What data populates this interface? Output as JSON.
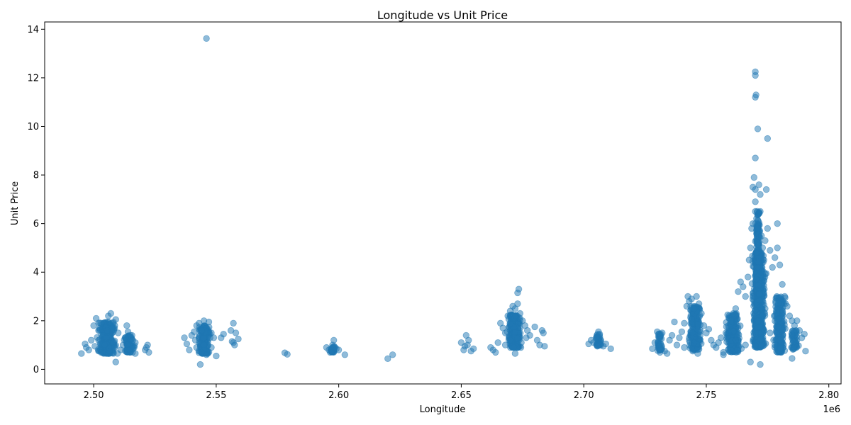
{
  "colors": {
    "marker": "#1f77b4",
    "axes": "#000000",
    "background": "#ffffff"
  },
  "chart_data": {
    "type": "scatter",
    "title": "Longitude vs Unit Price",
    "xlabel": "Longitude",
    "ylabel": "Unit Price",
    "x_offset_label": "1e6",
    "xlim": [
      2480000,
      2805000
    ],
    "ylim": [
      -0.6,
      14.3
    ],
    "xticks": [
      2500000,
      2550000,
      2600000,
      2650000,
      2700000,
      2750000,
      2800000
    ],
    "xtick_labels": [
      "2.50",
      "2.55",
      "2.60",
      "2.65",
      "2.70",
      "2.75",
      "2.80"
    ],
    "yticks": [
      0,
      2,
      4,
      6,
      8,
      10,
      12,
      14
    ],
    "ytick_labels": [
      "0",
      "2",
      "4",
      "6",
      "8",
      "10",
      "12",
      "14"
    ],
    "grid": false,
    "marker_alpha": 0.5,
    "points": [
      [
        2495000,
        0.65
      ],
      [
        2496500,
        1.05
      ],
      [
        2497000,
        0.9
      ],
      [
        2498000,
        0.8
      ],
      [
        2499000,
        1.2
      ],
      [
        2500000,
        1.8
      ],
      [
        2501000,
        2.1
      ],
      [
        2502000,
        1.6
      ],
      [
        2503000,
        1.9
      ],
      [
        2504000,
        1.4
      ],
      [
        2505000,
        1.3
      ],
      [
        2506000,
        2.2
      ],
      [
        2507000,
        2.3
      ],
      [
        2507500,
        1.7
      ],
      [
        2508000,
        1.1
      ],
      [
        2509000,
        2.05
      ],
      [
        2510000,
        1.5
      ],
      [
        2509000,
        0.3
      ],
      [
        2511000,
        0.8
      ],
      [
        2503000,
        0.7
      ],
      [
        2500500,
        0.95
      ],
      [
        2504500,
        1.0
      ],
      [
        2506500,
        0.75
      ],
      [
        2508500,
        0.9
      ],
      [
        2502000,
        1.2
      ],
      [
        2505500,
        1.6
      ],
      [
        2512000,
        1.0
      ],
      [
        2513000,
        1.3
      ],
      [
        2514000,
        1.55
      ],
      [
        2515000,
        1.4
      ],
      [
        2516000,
        1.2
      ],
      [
        2517000,
        1.1
      ],
      [
        2513500,
        1.8
      ],
      [
        2514500,
        0.8
      ],
      [
        2516500,
        0.9
      ],
      [
        2521000,
        0.8
      ],
      [
        2522000,
        1.0
      ],
      [
        2521500,
        0.9
      ],
      [
        2522500,
        0.7
      ],
      [
        2517000,
        0.65
      ],
      [
        2537000,
        1.3
      ],
      [
        2538000,
        1.05
      ],
      [
        2540000,
        1.4
      ],
      [
        2541000,
        1.55
      ],
      [
        2542000,
        1.8
      ],
      [
        2543000,
        1.9
      ],
      [
        2544000,
        1.6
      ],
      [
        2545000,
        2.0
      ],
      [
        2546000,
        1.7
      ],
      [
        2547000,
        1.95
      ],
      [
        2548000,
        1.5
      ],
      [
        2549000,
        1.3
      ],
      [
        2543500,
        0.2
      ],
      [
        2542000,
        0.9
      ],
      [
        2544000,
        0.7
      ],
      [
        2546000,
        0.6
      ],
      [
        2548000,
        0.9
      ],
      [
        2550000,
        0.55
      ],
      [
        2546000,
        13.62
      ],
      [
        2541500,
        1.2
      ],
      [
        2543000,
        1.1
      ],
      [
        2545000,
        1.0
      ],
      [
        2547500,
        1.3
      ],
      [
        2539000,
        0.8
      ],
      [
        2552000,
        1.3
      ],
      [
        2553000,
        1.45
      ],
      [
        2556000,
        1.6
      ],
      [
        2557000,
        1.9
      ],
      [
        2558000,
        1.5
      ],
      [
        2556500,
        1.15
      ],
      [
        2557500,
        1.0
      ],
      [
        2559000,
        1.25
      ],
      [
        2557000,
        1.1
      ],
      [
        2578000,
        0.68
      ],
      [
        2579000,
        0.62
      ],
      [
        2595000,
        0.9
      ],
      [
        2596000,
        0.8
      ],
      [
        2597000,
        0.75
      ],
      [
        2598000,
        1.2
      ],
      [
        2599000,
        0.85
      ],
      [
        2596500,
        0.7
      ],
      [
        2600000,
        0.8
      ],
      [
        2602500,
        0.6
      ],
      [
        2598500,
        0.9
      ],
      [
        2597500,
        1.0
      ],
      [
        2620000,
        0.44
      ],
      [
        2622000,
        0.6
      ],
      [
        2650000,
        1.1
      ],
      [
        2651000,
        0.8
      ],
      [
        2652000,
        1.4
      ],
      [
        2653000,
        1.2
      ],
      [
        2654000,
        0.75
      ],
      [
        2655000,
        0.85
      ],
      [
        2652500,
        1.0
      ],
      [
        2651500,
        0.95
      ],
      [
        2662000,
        0.9
      ],
      [
        2663000,
        0.8
      ],
      [
        2664000,
        0.7
      ],
      [
        2665000,
        1.1
      ],
      [
        2666000,
        1.9
      ],
      [
        2667000,
        1.7
      ],
      [
        2668000,
        1.5
      ],
      [
        2669000,
        2.2
      ],
      [
        2670000,
        2.4
      ],
      [
        2671000,
        2.6
      ],
      [
        2672000,
        2.5
      ],
      [
        2673000,
        2.7
      ],
      [
        2673500,
        3.3
      ],
      [
        2673000,
        3.15
      ],
      [
        2674000,
        2.3
      ],
      [
        2675000,
        2.0
      ],
      [
        2676000,
        1.8
      ],
      [
        2677000,
        1.6
      ],
      [
        2678000,
        1.4
      ],
      [
        2680000,
        1.75
      ],
      [
        2681000,
        1.2
      ],
      [
        2682000,
        1.0
      ],
      [
        2683000,
        1.6
      ],
      [
        2684000,
        0.95
      ],
      [
        2683500,
        1.5
      ],
      [
        2672000,
        0.65
      ],
      [
        2668000,
        1.0
      ],
      [
        2670000,
        1.2
      ],
      [
        2674500,
        1.1
      ],
      [
        2676500,
        1.3
      ],
      [
        2671500,
        0.9
      ],
      [
        2702000,
        1.05
      ],
      [
        2703000,
        1.2
      ],
      [
        2704000,
        1.1
      ],
      [
        2705000,
        1.3
      ],
      [
        2706000,
        1.55
      ],
      [
        2706500,
        1.45
      ],
      [
        2707000,
        1.0
      ],
      [
        2708000,
        0.95
      ],
      [
        2709000,
        1.05
      ],
      [
        2711000,
        0.85
      ],
      [
        2705500,
        0.95
      ],
      [
        2728000,
        0.85
      ],
      [
        2729000,
        1.1
      ],
      [
        2730000,
        1.55
      ],
      [
        2731000,
        1.4
      ],
      [
        2732000,
        1.5
      ],
      [
        2733000,
        0.75
      ],
      [
        2734000,
        0.65
      ],
      [
        2735000,
        1.2
      ],
      [
        2736000,
        1.4
      ],
      [
        2737000,
        1.95
      ],
      [
        2738000,
        1.0
      ],
      [
        2739000,
        1.3
      ],
      [
        2740000,
        1.55
      ],
      [
        2741000,
        1.9
      ],
      [
        2742000,
        2.6
      ],
      [
        2742500,
        3.0
      ],
      [
        2743000,
        2.8
      ],
      [
        2744000,
        2.9
      ],
      [
        2745000,
        2.5
      ],
      [
        2746000,
        3.0
      ],
      [
        2747000,
        2.7
      ],
      [
        2748000,
        2.3
      ],
      [
        2749000,
        1.8
      ],
      [
        2750000,
        1.5
      ],
      [
        2751000,
        1.65
      ],
      [
        2752000,
        1.2
      ],
      [
        2753000,
        1.0
      ],
      [
        2754000,
        0.9
      ],
      [
        2745000,
        1.1
      ],
      [
        2743000,
        1.2
      ],
      [
        2747500,
        1.4
      ],
      [
        2741000,
        0.9
      ],
      [
        2744500,
        0.75
      ],
      [
        2746500,
        0.65
      ],
      [
        2755000,
        1.1
      ],
      [
        2756000,
        1.3
      ],
      [
        2757000,
        0.7
      ],
      [
        2758000,
        1.5
      ],
      [
        2759000,
        1.8
      ],
      [
        2760000,
        2.0
      ],
      [
        2761000,
        2.3
      ],
      [
        2762000,
        2.5
      ],
      [
        2763000,
        3.2
      ],
      [
        2764000,
        3.6
      ],
      [
        2765000,
        3.4
      ],
      [
        2766000,
        3.0
      ],
      [
        2767000,
        3.8
      ],
      [
        2767500,
        4.5
      ],
      [
        2768000,
        5.0
      ],
      [
        2768500,
        5.8
      ],
      [
        2769000,
        6.0
      ],
      [
        2769000,
        7.5
      ],
      [
        2769500,
        7.9
      ],
      [
        2770000,
        6.5
      ],
      [
        2770000,
        6.9
      ],
      [
        2770000,
        7.4
      ],
      [
        2770000,
        8.7
      ],
      [
        2770000,
        11.2
      ],
      [
        2770300,
        11.3
      ],
      [
        2770000,
        12.1
      ],
      [
        2770000,
        12.25
      ],
      [
        2771000,
        9.9
      ],
      [
        2771500,
        7.6
      ],
      [
        2772000,
        7.2
      ],
      [
        2772000,
        6.5
      ],
      [
        2772500,
        5.5
      ],
      [
        2773000,
        5.0
      ],
      [
        2773500,
        4.5
      ],
      [
        2774000,
        5.3
      ],
      [
        2774500,
        7.4
      ],
      [
        2775000,
        9.5
      ],
      [
        2775000,
        5.8
      ],
      [
        2776000,
        4.9
      ],
      [
        2777000,
        4.2
      ],
      [
        2778000,
        4.6
      ],
      [
        2779000,
        6.0
      ],
      [
        2779000,
        5.0
      ],
      [
        2780000,
        4.3
      ],
      [
        2781000,
        3.5
      ],
      [
        2782000,
        3.0
      ],
      [
        2783000,
        2.6
      ],
      [
        2784000,
        2.2
      ],
      [
        2785000,
        2.0
      ],
      [
        2786000,
        1.8
      ],
      [
        2787000,
        2.0
      ],
      [
        2788000,
        1.6
      ],
      [
        2789000,
        1.3
      ],
      [
        2790000,
        1.45
      ],
      [
        2790500,
        0.75
      ],
      [
        2785000,
        0.45
      ],
      [
        2768000,
        0.3
      ],
      [
        2772000,
        0.2
      ],
      [
        2766000,
        1.0
      ],
      [
        2771000,
        2.0
      ],
      [
        2769000,
        3.0
      ],
      [
        2774000,
        2.5
      ],
      [
        2776000,
        1.5
      ],
      [
        2778000,
        1.0
      ],
      [
        2780000,
        1.2
      ],
      [
        2762000,
        1.2
      ],
      [
        2760000,
        0.8
      ],
      [
        2757000,
        0.6
      ]
    ],
    "clusters": [
      {
        "x": 2505500,
        "x_spread": 4600,
        "y_min": 0.65,
        "y_max": 1.95,
        "count": 260
      },
      {
        "x": 2514500,
        "x_spread": 2400,
        "y_min": 0.7,
        "y_max": 1.45,
        "count": 60
      },
      {
        "x": 2545000,
        "x_spread": 3000,
        "y_min": 0.65,
        "y_max": 1.8,
        "count": 170
      },
      {
        "x": 2597500,
        "x_spread": 1500,
        "y_min": 0.7,
        "y_max": 0.95,
        "count": 25
      },
      {
        "x": 2671500,
        "x_spread": 3400,
        "y_min": 0.9,
        "y_max": 2.25,
        "count": 230
      },
      {
        "x": 2706000,
        "x_spread": 1500,
        "y_min": 0.95,
        "y_max": 1.45,
        "count": 30
      },
      {
        "x": 2731000,
        "x_spread": 1200,
        "y_min": 0.7,
        "y_max": 1.5,
        "count": 40
      },
      {
        "x": 2745500,
        "x_spread": 3000,
        "y_min": 0.8,
        "y_max": 2.6,
        "count": 200
      },
      {
        "x": 2761000,
        "x_spread": 4000,
        "y_min": 0.7,
        "y_max": 2.3,
        "count": 200
      },
      {
        "x": 2771500,
        "x_spread": 3200,
        "y_min": 0.9,
        "y_max": 4.8,
        "count": 550
      },
      {
        "x": 2771000,
        "x_spread": 1300,
        "y_min": 3.0,
        "y_max": 6.6,
        "count": 180
      },
      {
        "x": 2780000,
        "x_spread": 2800,
        "y_min": 0.7,
        "y_max": 3.0,
        "count": 200
      },
      {
        "x": 2786000,
        "x_spread": 2000,
        "y_min": 0.8,
        "y_max": 1.6,
        "count": 50
      }
    ]
  }
}
